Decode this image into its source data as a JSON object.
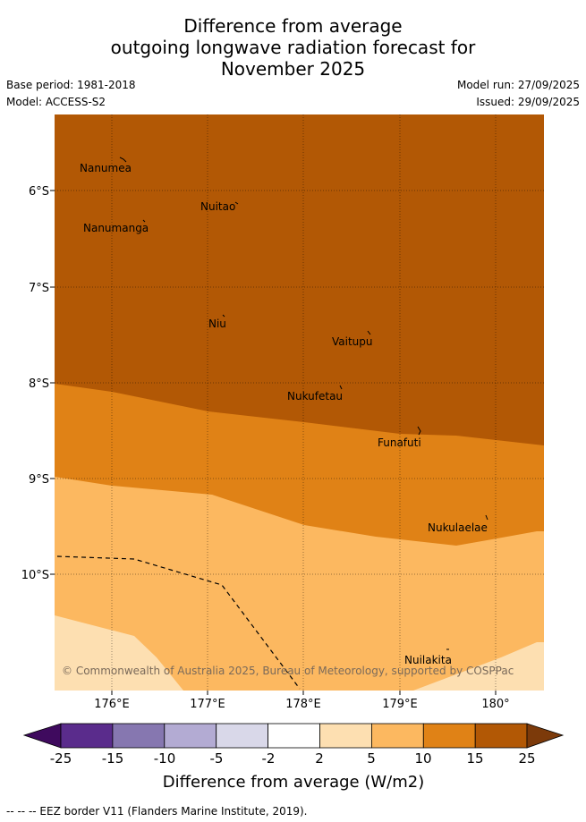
{
  "title": {
    "line1": "Difference from average",
    "line2": "outgoing longwave radiation forecast for",
    "line3": "November 2025"
  },
  "meta": {
    "base_period": "Base period: 1981-2018",
    "model": "Model: ACCESS-S2",
    "model_run": "Model run: 27/09/2025",
    "issued": "Issued: 29/09/2025"
  },
  "axes": {
    "lat_labels": [
      "6°S",
      "7°S",
      "8°S",
      "9°S",
      "10°S"
    ],
    "lon_labels": [
      "176°E",
      "177°E",
      "178°E",
      "179°E",
      "180°"
    ]
  },
  "places": [
    "Nanumea",
    "Nuitao",
    "Nanumanga",
    "Niu",
    "Vaitupu",
    "Nukufetau",
    "Funafuti",
    "Nukulaelae",
    "Nuilakita"
  ],
  "copyright": "© Commonwealth of Australia 2025, Bureau of Meteorology, supported by COSPPac",
  "colorbar": {
    "ticks": [
      "-25",
      "-15",
      "-10",
      "-5",
      "-2",
      "2",
      "5",
      "10",
      "15",
      "25"
    ],
    "label": "Difference from average (W/m2)",
    "colors": {
      "neg_extend": "#3f0a5e",
      "neg_25_15": "#5a2c8c",
      "neg_15_10": "#8677b0",
      "neg_10_5": "#b3abd3",
      "neg_5_2": "#d9d8e9",
      "neutral": "#ffffff",
      "pos_2_5": "#fddfb1",
      "pos_5_10": "#fcb860",
      "pos_10_15": "#e08216",
      "pos_15_25": "#b25805",
      "pos_extend": "#7c3a0a"
    }
  },
  "legend_footer": "-- -- -- EEZ border V11 (Flanders Marine Institute, 2019)."
}
